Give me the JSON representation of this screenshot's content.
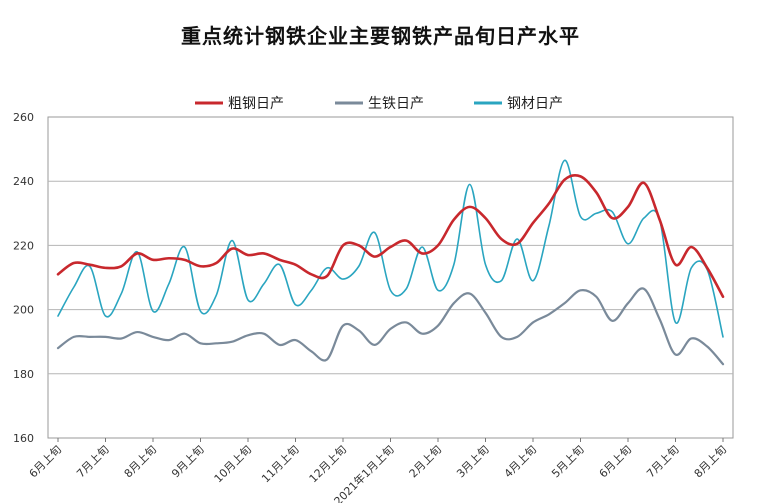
{
  "chart_data": {
    "type": "line",
    "title": "重点统计钢铁企业主要钢铁产品旬日产水平",
    "xlabel": "",
    "ylabel": "",
    "ylim": [
      160,
      260
    ],
    "yticks": [
      160,
      180,
      200,
      220,
      240,
      260
    ],
    "grid": true,
    "legend_position": "top",
    "x_tick_labels": [
      "6月上旬",
      "7月上旬",
      "8月上旬",
      "9月上旬",
      "10月上旬",
      "11月上旬",
      "12月上旬",
      "2021年1月上旬",
      "2月上旬",
      "3月上旬",
      "4月上旬",
      "5月上旬",
      "6月上旬",
      "7月上旬",
      "8月上旬"
    ],
    "x": [
      "2020年6月上旬",
      "2020年6月中旬",
      "2020年6月下旬",
      "2020年7月上旬",
      "2020年7月中旬",
      "2020年7月下旬",
      "2020年8月上旬",
      "2020年8月中旬",
      "2020年8月下旬",
      "2020年9月上旬",
      "2020年9月中旬",
      "2020年9月下旬",
      "2020年10月上旬",
      "2020年10月中旬",
      "2020年10月下旬",
      "2020年11月上旬",
      "2020年11月中旬",
      "2020年11月下旬",
      "2020年12月上旬",
      "2020年12月中旬",
      "2020年12月下旬",
      "2021年1月上旬",
      "2021年1月中旬",
      "2021年1月下旬",
      "2021年2月上旬",
      "2021年2月中旬",
      "2021年2月下旬",
      "2021年3月上旬",
      "2021年3月中旬",
      "2021年3月下旬",
      "2021年4月上旬",
      "2021年4月中旬",
      "2021年4月下旬",
      "2021年5月上旬",
      "2021年5月中旬",
      "2021年5月下旬",
      "2021年6月上旬",
      "2021年6月中旬",
      "2021年6月下旬",
      "2021年7月上旬",
      "2021年7月中旬",
      "2021年7月下旬",
      "2021年8月上旬"
    ],
    "series": [
      {
        "name": "粗钢日产",
        "color": "#c8282d",
        "values": [
          211,
          214.5,
          214,
          213,
          213.5,
          217.5,
          215.5,
          216,
          215.5,
          213.5,
          214.5,
          219,
          217,
          217.5,
          215.5,
          214,
          211,
          210.5,
          220,
          220,
          216.5,
          219.5,
          221.5,
          217.5,
          220,
          228,
          232,
          228.5,
          222,
          220.5,
          227,
          233,
          240.5,
          241.5,
          236.5,
          228.5,
          232,
          239.5,
          228,
          214,
          219.5,
          213,
          204
        ]
      },
      {
        "name": "生铁日产",
        "color": "#7a8a9a",
        "values": [
          188,
          191.5,
          191.5,
          191.5,
          191,
          193,
          191.5,
          190.5,
          192.5,
          189.5,
          189.5,
          190,
          192,
          192.5,
          189,
          190.5,
          187,
          184.5,
          195,
          193.5,
          189,
          194,
          196,
          192.5,
          195,
          202,
          205,
          199,
          191.5,
          191.5,
          196,
          198.5,
          202,
          206,
          204,
          196.5,
          202,
          206.5,
          197,
          186,
          191,
          188.5,
          183
        ]
      },
      {
        "name": "钢材日产",
        "color": "#2aa5c0",
        "values": [
          198,
          207,
          213.5,
          198,
          205,
          218,
          199.5,
          208,
          219.5,
          199.5,
          204.5,
          221.5,
          203,
          208,
          214,
          201.5,
          206,
          213,
          209.5,
          213.5,
          224,
          206,
          206.5,
          219.5,
          206,
          214,
          239,
          214,
          209,
          222,
          209,
          226,
          246.5,
          229,
          230,
          230.5,
          220.5,
          228.5,
          228,
          196,
          213,
          212.5,
          191.5
        ]
      }
    ]
  }
}
